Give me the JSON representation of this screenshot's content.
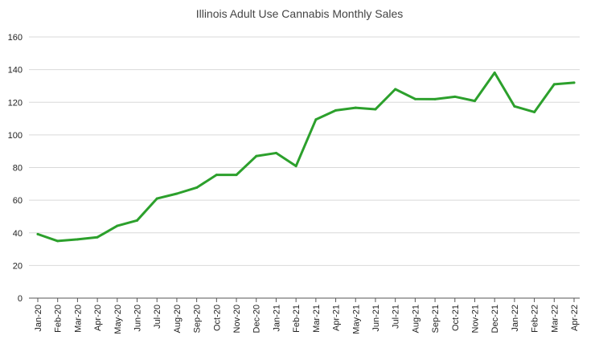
{
  "chart_data": {
    "type": "line",
    "title": "Illinois Adult Use Cannabis Monthly Sales",
    "xlabel": "",
    "ylabel": "",
    "ylim": [
      0,
      160
    ],
    "yticks": [
      0,
      20,
      40,
      60,
      80,
      100,
      120,
      140,
      160
    ],
    "ytick_labels": [
      "0",
      "20",
      "40",
      "60",
      "80",
      "100",
      "120",
      "140",
      "160"
    ],
    "grid": true,
    "legend": "none",
    "categories": [
      "Jan-20",
      "Feb-20",
      "Mar-20",
      "Apr-20",
      "May-20",
      "Jun-20",
      "Jul-20",
      "Aug-20",
      "Sep-20",
      "Oct-20",
      "Nov-20",
      "Dec-20",
      "Jan-21",
      "Feb-21",
      "Mar-21",
      "Apr-21",
      "May-21",
      "Jun-21",
      "Jul-21",
      "Aug-21",
      "Sep-21",
      "Oct-21",
      "Nov-21",
      "Dec-21",
      "Jan-22",
      "Feb-22",
      "Mar-22",
      "Apr-22"
    ],
    "series": [
      {
        "name": "Monthly Sales",
        "color": "#2ca02c",
        "values": [
          39.2,
          35.0,
          36.0,
          37.3,
          44.3,
          47.6,
          61.0,
          64.0,
          67.7,
          75.5,
          75.5,
          87.0,
          88.9,
          80.9,
          109.4,
          115.0,
          116.6,
          115.7,
          128.0,
          122.0,
          121.9,
          123.4,
          120.8,
          138.1,
          117.5,
          114.0,
          131.0,
          132.0
        ]
      }
    ]
  }
}
